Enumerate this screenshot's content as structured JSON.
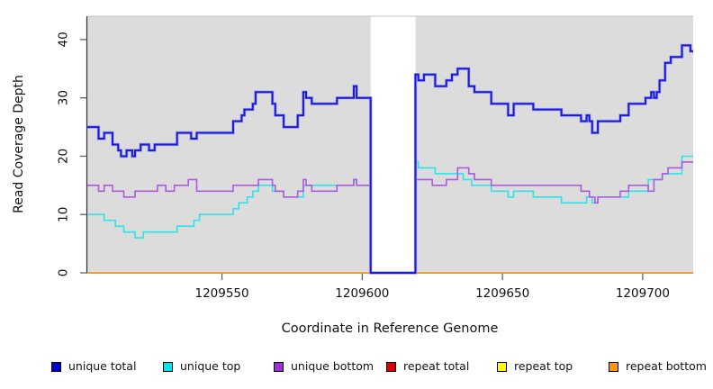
{
  "chart_data": {
    "type": "line",
    "step": true,
    "title": "",
    "xlabel": "Coordinate in Reference Genome",
    "ylabel": "Read Coverage Depth",
    "xlim": [
      1209502,
      1209718
    ],
    "ylim": [
      0,
      44
    ],
    "xticks": [
      1209550,
      1209600,
      1209650,
      1209700
    ],
    "yticks": [
      0,
      10,
      20,
      30,
      40
    ],
    "grid": false,
    "legend_position": "bottom",
    "plot_bg": "#dcdcdc",
    "no_data_region": {
      "x_start": 1209603,
      "x_end": 1209619
    },
    "series": [
      {
        "name": "unique total",
        "color": "#1b1bd8",
        "legend_color": "#0000cd",
        "points": [
          [
            1209502,
            25
          ],
          [
            1209506,
            23
          ],
          [
            1209508,
            24
          ],
          [
            1209511,
            22
          ],
          [
            1209513,
            21
          ],
          [
            1209514,
            20
          ],
          [
            1209516,
            21
          ],
          [
            1209518,
            20
          ],
          [
            1209519,
            21
          ],
          [
            1209521,
            22
          ],
          [
            1209524,
            21
          ],
          [
            1209526,
            22
          ],
          [
            1209534,
            24
          ],
          [
            1209539,
            23
          ],
          [
            1209541,
            24
          ],
          [
            1209554,
            26
          ],
          [
            1209557,
            27
          ],
          [
            1209558,
            28
          ],
          [
            1209561,
            29
          ],
          [
            1209562,
            31
          ],
          [
            1209568,
            29
          ],
          [
            1209569,
            27
          ],
          [
            1209572,
            25
          ],
          [
            1209577,
            27
          ],
          [
            1209579,
            31
          ],
          [
            1209580,
            30
          ],
          [
            1209582,
            29
          ],
          [
            1209591,
            30
          ],
          [
            1209597,
            32
          ],
          [
            1209598,
            30
          ],
          [
            1209603,
            0
          ],
          [
            1209619,
            34
          ],
          [
            1209620,
            33
          ],
          [
            1209622,
            34
          ],
          [
            1209626,
            32
          ],
          [
            1209630,
            33
          ],
          [
            1209632,
            34
          ],
          [
            1209634,
            35
          ],
          [
            1209638,
            32
          ],
          [
            1209640,
            31
          ],
          [
            1209646,
            29
          ],
          [
            1209652,
            27
          ],
          [
            1209654,
            29
          ],
          [
            1209661,
            28
          ],
          [
            1209671,
            27
          ],
          [
            1209678,
            26
          ],
          [
            1209680,
            27
          ],
          [
            1209681,
            26
          ],
          [
            1209682,
            24
          ],
          [
            1209684,
            26
          ],
          [
            1209692,
            27
          ],
          [
            1209695,
            29
          ],
          [
            1209701,
            30
          ],
          [
            1209703,
            31
          ],
          [
            1209704,
            30
          ],
          [
            1209705,
            31
          ],
          [
            1209706,
            33
          ],
          [
            1209708,
            36
          ],
          [
            1209710,
            37
          ],
          [
            1209714,
            39
          ],
          [
            1209717,
            38
          ],
          [
            1209718,
            38
          ]
        ]
      },
      {
        "name": "unique top",
        "color": "#2ee4e8",
        "legend_color": "#00e5ee",
        "points": [
          [
            1209502,
            10
          ],
          [
            1209508,
            9
          ],
          [
            1209512,
            8
          ],
          [
            1209515,
            7
          ],
          [
            1209519,
            6
          ],
          [
            1209522,
            7
          ],
          [
            1209534,
            8
          ],
          [
            1209540,
            9
          ],
          [
            1209542,
            10
          ],
          [
            1209554,
            11
          ],
          [
            1209556,
            12
          ],
          [
            1209559,
            13
          ],
          [
            1209561,
            14
          ],
          [
            1209563,
            15
          ],
          [
            1209568,
            14
          ],
          [
            1209572,
            13
          ],
          [
            1209579,
            15
          ],
          [
            1209597,
            16
          ],
          [
            1209598,
            15
          ],
          [
            1209603,
            0
          ],
          [
            1209619,
            19
          ],
          [
            1209620,
            18
          ],
          [
            1209626,
            17
          ],
          [
            1209636,
            16
          ],
          [
            1209639,
            15
          ],
          [
            1209646,
            14
          ],
          [
            1209652,
            13
          ],
          [
            1209654,
            14
          ],
          [
            1209661,
            13
          ],
          [
            1209671,
            12
          ],
          [
            1209680,
            13
          ],
          [
            1209682,
            12
          ],
          [
            1209684,
            13
          ],
          [
            1209695,
            14
          ],
          [
            1209702,
            16
          ],
          [
            1209707,
            17
          ],
          [
            1209714,
            20
          ],
          [
            1209718,
            20
          ]
        ]
      },
      {
        "name": "unique bottom",
        "color": "#ad59e0",
        "legend_color": "#9b30d9",
        "points": [
          [
            1209502,
            15
          ],
          [
            1209506,
            14
          ],
          [
            1209508,
            15
          ],
          [
            1209511,
            14
          ],
          [
            1209515,
            13
          ],
          [
            1209519,
            14
          ],
          [
            1209527,
            15
          ],
          [
            1209530,
            14
          ],
          [
            1209533,
            15
          ],
          [
            1209538,
            16
          ],
          [
            1209541,
            14
          ],
          [
            1209554,
            15
          ],
          [
            1209563,
            16
          ],
          [
            1209568,
            15
          ],
          [
            1209569,
            14
          ],
          [
            1209572,
            13
          ],
          [
            1209577,
            14
          ],
          [
            1209579,
            16
          ],
          [
            1209580,
            15
          ],
          [
            1209582,
            14
          ],
          [
            1209591,
            15
          ],
          [
            1209597,
            16
          ],
          [
            1209598,
            15
          ],
          [
            1209603,
            0
          ],
          [
            1209619,
            16
          ],
          [
            1209625,
            15
          ],
          [
            1209630,
            16
          ],
          [
            1209634,
            18
          ],
          [
            1209638,
            17
          ],
          [
            1209640,
            16
          ],
          [
            1209646,
            15
          ],
          [
            1209678,
            14
          ],
          [
            1209681,
            13
          ],
          [
            1209683,
            12
          ],
          [
            1209684,
            13
          ],
          [
            1209692,
            14
          ],
          [
            1209695,
            15
          ],
          [
            1209702,
            14
          ],
          [
            1209704,
            16
          ],
          [
            1209707,
            17
          ],
          [
            1209709,
            18
          ],
          [
            1209714,
            19
          ],
          [
            1209718,
            19
          ]
        ]
      },
      {
        "name": "repeat total",
        "color": "#dd0c0c",
        "legend_color": "#dd0000",
        "points": [
          [
            1209502,
            0
          ],
          [
            1209718,
            0
          ]
        ]
      },
      {
        "name": "repeat top",
        "color": "#f2f20c",
        "legend_color": "#ffff00",
        "points": [
          [
            1209502,
            0
          ],
          [
            1209718,
            0
          ]
        ]
      },
      {
        "name": "repeat bottom",
        "color": "#ff9d2b",
        "legend_color": "#ff9900",
        "points": [
          [
            1209502,
            0
          ],
          [
            1209718,
            0
          ]
        ]
      }
    ]
  }
}
